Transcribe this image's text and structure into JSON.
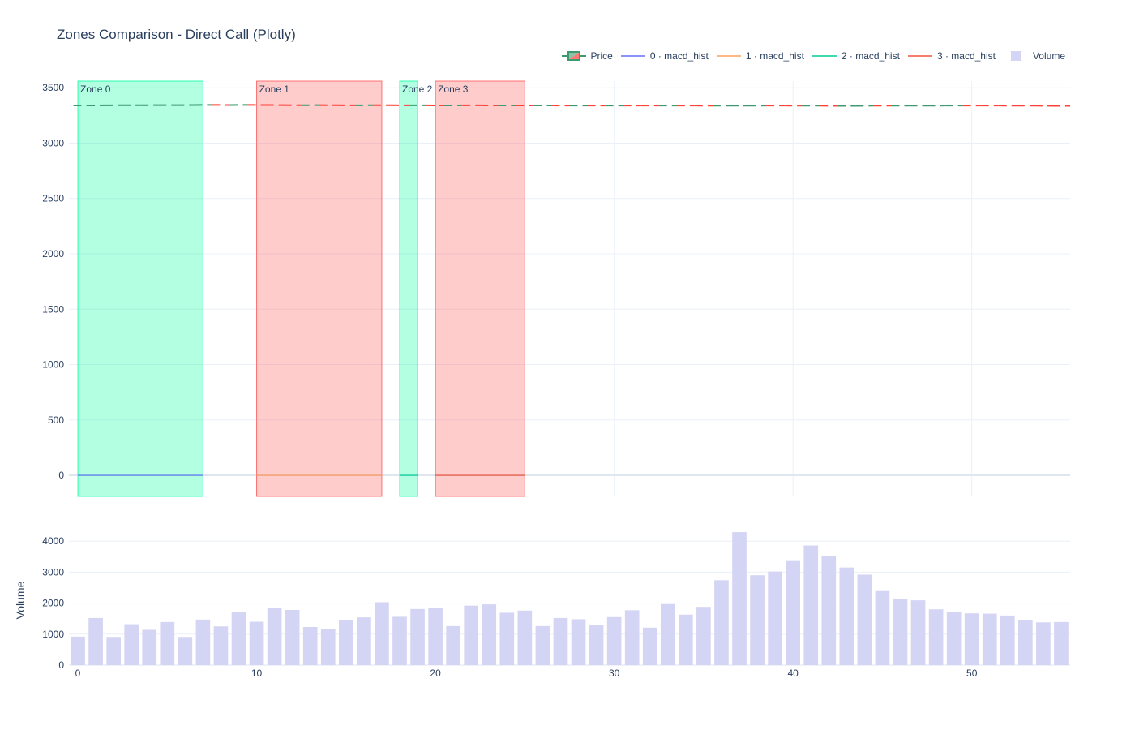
{
  "chart_data": {
    "title": "Zones Comparison - Direct Call (Plotly)",
    "legend": [
      {
        "name": "Price",
        "kind": "candlestick",
        "colors": [
          "#3d9970",
          "#ff4136"
        ]
      },
      {
        "name": "0 · macd_hist",
        "kind": "line",
        "color": "#636efa"
      },
      {
        "name": "1 · macd_hist",
        "kind": "line",
        "color": "#ffa15a"
      },
      {
        "name": "2 · macd_hist",
        "kind": "line",
        "color": "#00cc96"
      },
      {
        "name": "3 · macd_hist",
        "kind": "line",
        "color": "#ef553b"
      },
      {
        "name": "Volume",
        "kind": "bar",
        "color": "#d4d4f4"
      }
    ],
    "legend_placement": "top-right",
    "grid": true,
    "price_panel": {
      "type": "line",
      "xlim": [
        -0.5,
        55.5
      ],
      "ylim": [
        -190,
        3560
      ],
      "yticks": [
        0,
        500,
        1000,
        1500,
        2000,
        2500,
        3000,
        3500
      ],
      "x_grid": [
        0,
        10,
        20,
        30,
        40,
        50
      ],
      "price_series": {
        "name": "Price",
        "up_color": "#3d9970",
        "down_color": "#ff4136",
        "x": [
          0,
          1,
          2,
          3,
          4,
          5,
          6,
          7,
          8,
          9,
          10,
          11,
          12,
          13,
          14,
          15,
          16,
          17,
          18,
          19,
          20,
          21,
          22,
          23,
          24,
          25,
          26,
          27,
          28,
          29,
          30,
          31,
          32,
          33,
          34,
          35,
          36,
          37,
          38,
          39,
          40,
          41,
          42,
          43,
          44,
          45,
          46,
          47,
          48,
          49,
          50,
          51,
          52,
          53,
          54,
          55
        ],
        "close": [
          3340,
          3341,
          3342,
          3342,
          3343,
          3343,
          3344,
          3345,
          3344,
          3345,
          3344,
          3343,
          3342,
          3343,
          3342,
          3341,
          3342,
          3342,
          3341,
          3341,
          3340,
          3341,
          3341,
          3340,
          3340,
          3340,
          3340,
          3339,
          3339,
          3339,
          3339,
          3339,
          3339,
          3339,
          3339,
          3338,
          3338,
          3338,
          3339,
          3339,
          3338,
          3338,
          3337,
          3337,
          3338,
          3338,
          3338,
          3338,
          3339,
          3339,
          3339,
          3339,
          3338,
          3338,
          3337,
          3337
        ],
        "up": [
          true,
          true,
          true,
          true,
          true,
          true,
          true,
          true,
          false,
          true,
          false,
          false,
          false,
          true,
          false,
          false,
          true,
          false,
          false,
          true,
          false,
          true,
          false,
          false,
          true,
          false,
          true,
          false,
          true,
          false,
          true,
          false,
          false,
          true,
          false,
          false,
          true,
          true,
          true,
          false,
          false,
          true,
          false,
          true,
          true,
          false,
          true,
          true,
          true,
          true,
          false,
          false,
          false,
          false,
          false,
          false
        ]
      },
      "zones": [
        {
          "label": "Zone 0",
          "x0": 0,
          "x1": 7,
          "color": "#00ff9f",
          "type": "bullish"
        },
        {
          "label": "Zone 1",
          "x0": 10,
          "x1": 17,
          "color": "#ff5555",
          "type": "bearish"
        },
        {
          "label": "Zone 2",
          "x0": 18,
          "x1": 19,
          "color": "#00ff9f",
          "type": "bullish"
        },
        {
          "label": "Zone 3",
          "x0": 20,
          "x1": 25,
          "color": "#ff5555",
          "type": "bearish"
        }
      ],
      "macd_series": [
        {
          "name": "0 · macd_hist",
          "x": [
            0,
            7
          ],
          "y": [
            0,
            0
          ],
          "color": "#636efa"
        },
        {
          "name": "1 · macd_hist",
          "x": [
            10,
            17
          ],
          "y": [
            0,
            0
          ],
          "color": "#ffa15a"
        },
        {
          "name": "2 · macd_hist",
          "x": [
            18,
            19
          ],
          "y": [
            0,
            0
          ],
          "color": "#00cc96"
        },
        {
          "name": "3 · macd_hist",
          "x": [
            20,
            25
          ],
          "y": [
            0,
            0
          ],
          "color": "#ef553b"
        }
      ]
    },
    "volume_panel": {
      "type": "bar",
      "ylabel": "Volume",
      "ylim": [
        0,
        4450
      ],
      "yticks": [
        0,
        1000,
        2000,
        3000,
        4000
      ],
      "xlim": [
        -0.5,
        55.5
      ],
      "xticks": [
        0,
        10,
        20,
        30,
        40,
        50
      ],
      "color": "#d4d4f4",
      "x": [
        0,
        1,
        2,
        3,
        4,
        5,
        6,
        7,
        8,
        9,
        10,
        11,
        12,
        13,
        14,
        15,
        16,
        17,
        18,
        19,
        20,
        21,
        22,
        23,
        24,
        25,
        26,
        27,
        28,
        29,
        30,
        31,
        32,
        33,
        34,
        35,
        36,
        37,
        38,
        39,
        40,
        41,
        42,
        43,
        44,
        45,
        46,
        47,
        48,
        49,
        50,
        51,
        52,
        53,
        54,
        55
      ],
      "values": [
        920,
        1520,
        910,
        1320,
        1140,
        1390,
        910,
        1470,
        1250,
        1700,
        1400,
        1840,
        1780,
        1230,
        1170,
        1450,
        1540,
        2030,
        1560,
        1810,
        1850,
        1260,
        1920,
        1960,
        1690,
        1760,
        1260,
        1520,
        1480,
        1290,
        1550,
        1770,
        1210,
        1970,
        1630,
        1880,
        2740,
        4290,
        2900,
        3020,
        3360,
        3860,
        3530,
        3150,
        2920,
        2390,
        2140,
        2090,
        1800,
        1700,
        1670,
        1660,
        1600,
        1460,
        1380,
        1390
      ]
    }
  }
}
